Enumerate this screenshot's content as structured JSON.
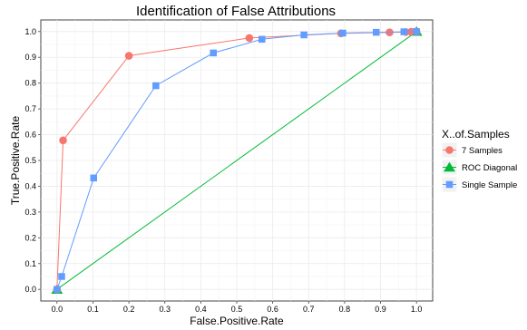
{
  "chart_data": {
    "type": "line",
    "title": "Identification of False Attributions",
    "xlabel": "False.Positive.Rate",
    "ylabel": "True.Positive.Rate",
    "xlim": [
      0.0,
      1.0
    ],
    "ylim": [
      0.0,
      1.0
    ],
    "x_ticks": [
      "0.0",
      "0.1",
      "0.2",
      "0.3",
      "0.4",
      "0.5",
      "0.6",
      "0.7",
      "0.8",
      "0.9",
      "1.0"
    ],
    "y_ticks": [
      "0.0",
      "0.1",
      "0.2",
      "0.3",
      "0.4",
      "0.5",
      "0.6",
      "0.7",
      "0.8",
      "0.9",
      "1.0"
    ],
    "grid": true,
    "legend": {
      "title": "X..of.Samples",
      "placement": "right"
    },
    "series": [
      {
        "name": "7 Samples",
        "color": "#F8766D",
        "marker": "circle",
        "x": [
          0.0,
          0.017,
          0.2,
          0.535,
          0.79,
          0.925,
          0.97,
          0.985,
          1.0
        ],
        "y": [
          0.0,
          0.578,
          0.906,
          0.975,
          0.993,
          0.997,
          0.998,
          0.999,
          1.0
        ]
      },
      {
        "name": "ROC Diagonal",
        "color": "#00BA38",
        "marker": "triangle",
        "x": [
          0.0,
          1.0
        ],
        "y": [
          0.0,
          1.0
        ]
      },
      {
        "name": "Single Sample",
        "color": "#619CFF",
        "marker": "square",
        "x": [
          0.0,
          0.013,
          0.102,
          0.275,
          0.435,
          0.57,
          0.687,
          0.795,
          0.888,
          0.965,
          1.0
        ],
        "y": [
          0.0,
          0.05,
          0.432,
          0.79,
          0.917,
          0.97,
          0.987,
          0.994,
          0.997,
          0.999,
          1.0
        ]
      }
    ]
  }
}
